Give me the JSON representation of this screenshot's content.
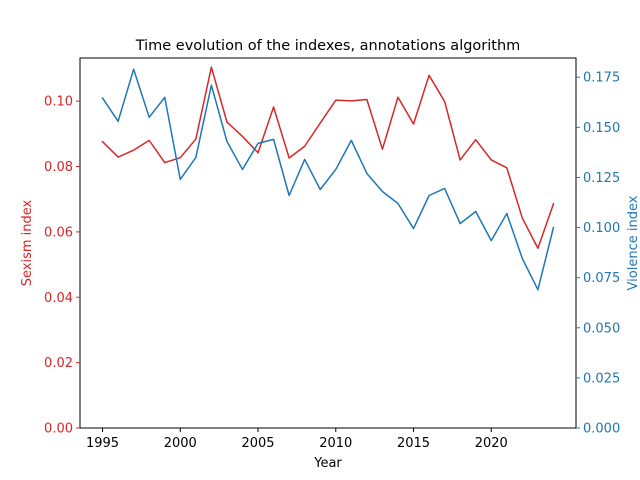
{
  "chart_data": {
    "type": "line",
    "title": "Time evolution of the indexes, annotations algorithm",
    "xlabel": "Year",
    "ylabel_left": "Sexism index",
    "ylabel_right": "Violence index",
    "xlim": [
      1993.55,
      2025.45
    ],
    "ylim_left": [
      0.0,
      0.1132
    ],
    "ylim_right": [
      0.0,
      0.1846
    ],
    "xticks": [
      1995,
      2000,
      2005,
      2010,
      2015,
      2020
    ],
    "yticks_left": [
      "0.00",
      "0.02",
      "0.04",
      "0.06",
      "0.08",
      "0.10"
    ],
    "yticks_right": [
      "0.000",
      "0.025",
      "0.050",
      "0.075",
      "0.100",
      "0.125",
      "0.150",
      "0.175"
    ],
    "x": [
      1995,
      1996,
      1997,
      1998,
      1999,
      2000,
      2001,
      2002,
      2003,
      2004,
      2005,
      2006,
      2007,
      2008,
      2009,
      2010,
      2011,
      2012,
      2013,
      2014,
      2015,
      2016,
      2017,
      2018,
      2019,
      2020,
      2021,
      2022,
      2023,
      2024
    ],
    "series": [
      {
        "name": "Sexism index",
        "axis": "left",
        "color": "#d62728",
        "values": [
          0.0876,
          0.0829,
          0.085,
          0.088,
          0.0812,
          0.0827,
          0.0884,
          0.1104,
          0.0936,
          0.0892,
          0.0842,
          0.0982,
          0.0826,
          0.0862,
          0.0933,
          0.1003,
          0.1001,
          0.1005,
          0.0853,
          0.1012,
          0.093,
          0.1079,
          0.0999,
          0.082,
          0.0882,
          0.082,
          0.0796,
          0.0642,
          0.055,
          0.0686
        ]
      },
      {
        "name": "Violence index",
        "axis": "right",
        "color": "#1f77b4",
        "values": [
          0.1646,
          0.153,
          0.179,
          0.155,
          0.165,
          0.124,
          0.135,
          0.171,
          0.143,
          0.129,
          0.142,
          0.144,
          0.116,
          0.134,
          0.119,
          0.129,
          0.1435,
          0.127,
          0.118,
          0.112,
          0.0995,
          0.116,
          0.1195,
          0.102,
          0.108,
          0.0935,
          0.107,
          0.0845,
          0.069,
          0.1
        ]
      }
    ],
    "grid": false
  }
}
